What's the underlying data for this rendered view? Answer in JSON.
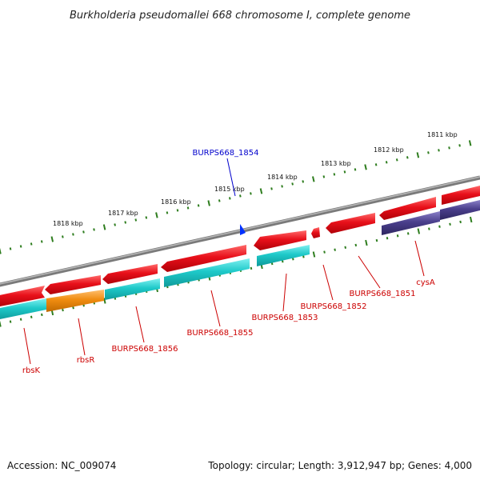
{
  "title": "Burkholderia pseudomallei 668 chromosome I, complete genome",
  "footer": {
    "accession": "Accession: NC_009074",
    "summary": "Topology: circular; Length: 3,912,947 bp; Genes: 4,000"
  },
  "colors": {
    "forward_gene": "#e8101a",
    "reverse_gene": "#1ec9c9",
    "orange_gene": "#f08c10",
    "purple_gene": "#4a3f8c",
    "backbone": "#808080",
    "ticks": "#2e7d1e",
    "label_red": "#cc0000",
    "label_blue": "#0000cc",
    "marker": "#0030ff"
  },
  "scale_labels": [
    "1818 kbp",
    "1817 kbp",
    "1816 kbp",
    "1815 kbp",
    "1814 kbp",
    "1813 kbp",
    "1812 kbp",
    "1811 kbp"
  ],
  "gene_labels": [
    {
      "text": "BURPS668_1854",
      "color": "blue"
    },
    {
      "text": "rbsK",
      "color": "red"
    },
    {
      "text": "rbsR",
      "color": "red"
    },
    {
      "text": "BURPS668_1856",
      "color": "red"
    },
    {
      "text": "BURPS668_1855",
      "color": "red"
    },
    {
      "text": "BURPS668_1853",
      "color": "red"
    },
    {
      "text": "BURPS668_1852",
      "color": "red"
    },
    {
      "text": "BURPS668_1851",
      "color": "red"
    },
    {
      "text": "cysA",
      "color": "red"
    }
  ]
}
